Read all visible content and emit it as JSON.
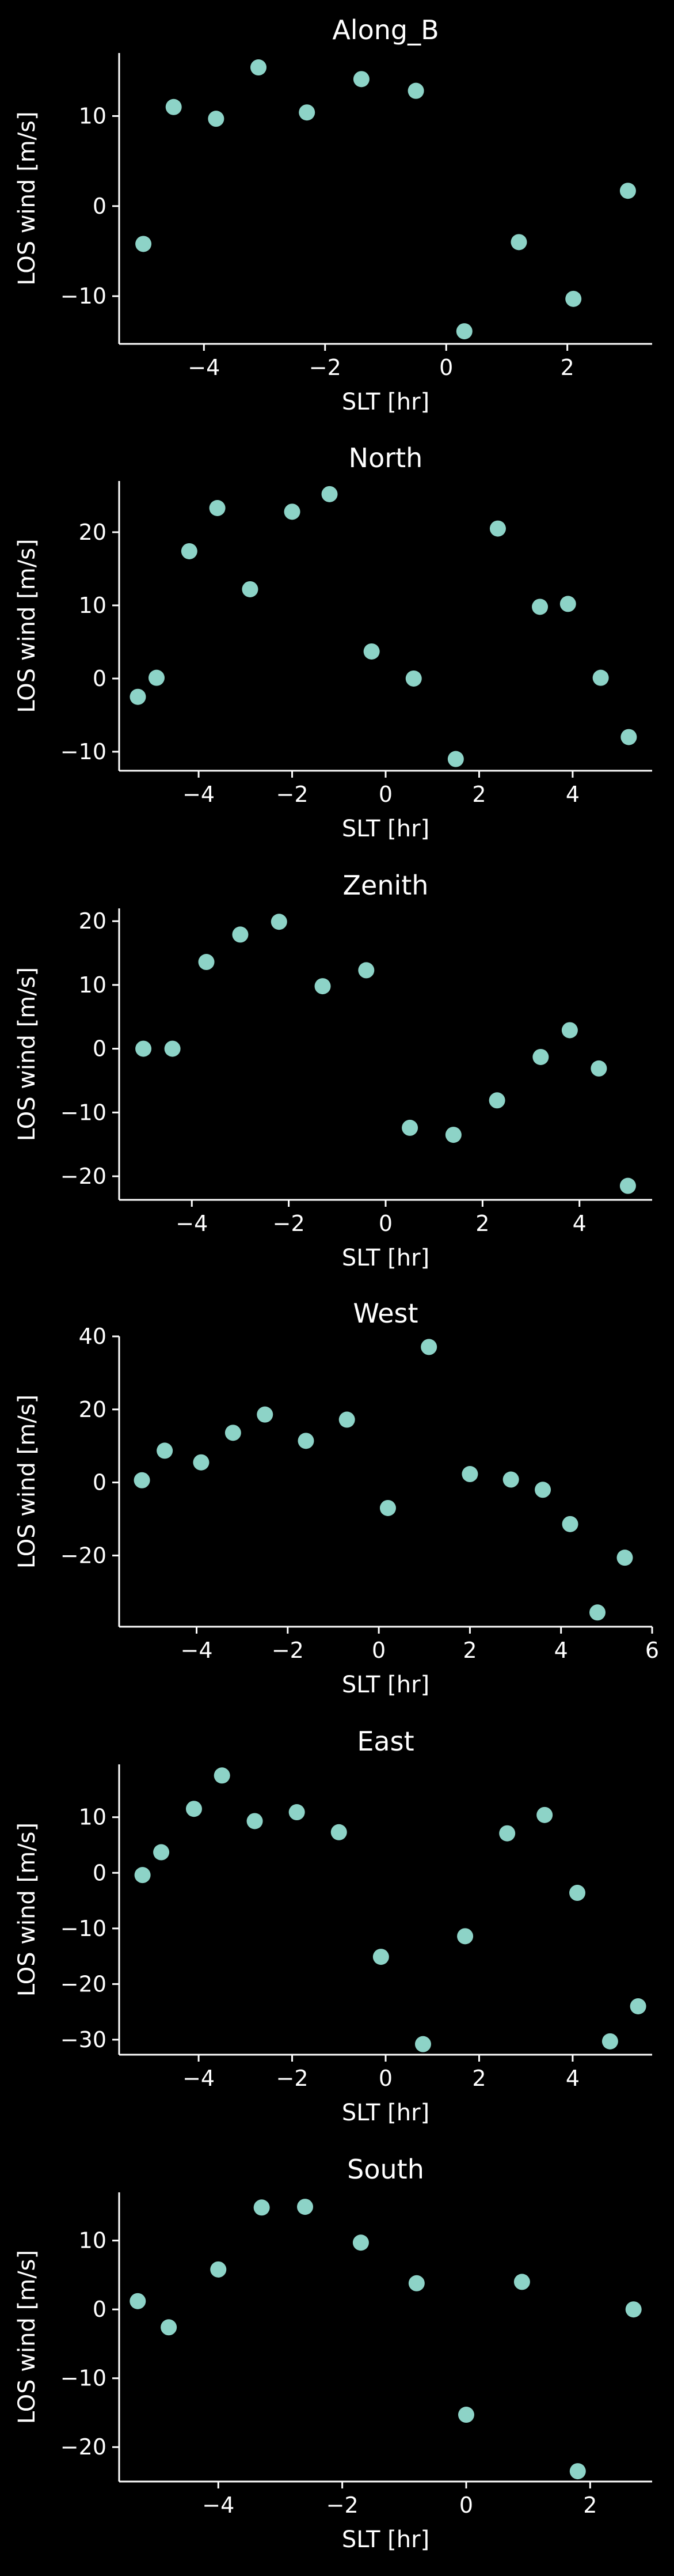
{
  "chart_data": [
    {
      "type": "scatter",
      "title": "Along_B",
      "xlabel": "SLT [hr]",
      "ylabel": "LOS wind [m/s]",
      "xlim": [
        -5.4,
        3.4
      ],
      "ylim": [
        -15.3,
        17.0
      ],
      "xticks": [
        -4,
        -2,
        0,
        2
      ],
      "yticks": [
        -10,
        0,
        10
      ],
      "marker_color": "#8dd3c7",
      "points": [
        {
          "x": -5.0,
          "y": -4.2
        },
        {
          "x": -4.5,
          "y": 11.0
        },
        {
          "x": -3.8,
          "y": 9.7
        },
        {
          "x": -3.1,
          "y": 15.4
        },
        {
          "x": -2.3,
          "y": 10.4
        },
        {
          "x": -1.4,
          "y": 14.1
        },
        {
          "x": -0.5,
          "y": 12.8
        },
        {
          "x": 0.3,
          "y": -13.9
        },
        {
          "x": 1.2,
          "y": -4.0
        },
        {
          "x": 2.1,
          "y": -10.3
        },
        {
          "x": 3.0,
          "y": 1.7
        }
      ]
    },
    {
      "type": "scatter",
      "title": "North",
      "xlabel": "SLT [hr]",
      "ylabel": "LOS wind [m/s]",
      "xlim": [
        -5.7,
        5.7
      ],
      "ylim": [
        -12.6,
        27.0
      ],
      "xticks": [
        -4,
        -2,
        0,
        2,
        4
      ],
      "yticks": [
        -10,
        0,
        10,
        20
      ],
      "marker_color": "#8dd3c7",
      "points": [
        {
          "x": -5.3,
          "y": -2.5
        },
        {
          "x": -4.9,
          "y": 0.1
        },
        {
          "x": -4.2,
          "y": 17.4
        },
        {
          "x": -3.6,
          "y": 23.3
        },
        {
          "x": -2.9,
          "y": 12.2
        },
        {
          "x": -2.0,
          "y": 22.8
        },
        {
          "x": -1.2,
          "y": 25.2
        },
        {
          "x": -0.3,
          "y": 3.7
        },
        {
          "x": 0.6,
          "y": 0.0
        },
        {
          "x": 1.5,
          "y": -11.0
        },
        {
          "x": 2.4,
          "y": 20.5
        },
        {
          "x": 3.3,
          "y": 9.8
        },
        {
          "x": 3.9,
          "y": 10.2
        },
        {
          "x": 4.6,
          "y": 0.1
        },
        {
          "x": 5.2,
          "y": -8.0
        }
      ]
    },
    {
      "type": "scatter",
      "title": "Zenith",
      "xlabel": "SLT [hr]",
      "ylabel": "LOS wind [m/s]",
      "xlim": [
        -5.5,
        5.5
      ],
      "ylim": [
        -23.7,
        22.0
      ],
      "xticks": [
        -4,
        -2,
        0,
        2,
        4
      ],
      "yticks": [
        -20,
        -10,
        0,
        10,
        20
      ],
      "marker_color": "#8dd3c7",
      "points": [
        {
          "x": -5.0,
          "y": 0.0
        },
        {
          "x": -4.4,
          "y": 0.0
        },
        {
          "x": -3.7,
          "y": 13.6
        },
        {
          "x": -3.0,
          "y": 17.9
        },
        {
          "x": -2.2,
          "y": 19.9
        },
        {
          "x": -1.3,
          "y": 9.8
        },
        {
          "x": -0.4,
          "y": 12.3
        },
        {
          "x": 0.5,
          "y": -12.4
        },
        {
          "x": 1.4,
          "y": -13.5
        },
        {
          "x": 2.3,
          "y": -8.1
        },
        {
          "x": 3.2,
          "y": -1.3
        },
        {
          "x": 3.8,
          "y": 2.9
        },
        {
          "x": 4.4,
          "y": -3.1
        },
        {
          "x": 5.0,
          "y": -21.5
        }
      ]
    },
    {
      "type": "scatter",
      "title": "West",
      "xlabel": "SLT [hr]",
      "ylabel": "LOS wind [m/s]",
      "xlim": [
        -5.7,
        6.0
      ],
      "ylim": [
        -39.5,
        40.0
      ],
      "xticks": [
        -4,
        -2,
        0,
        2,
        4,
        6
      ],
      "yticks": [
        -20,
        0,
        20,
        40
      ],
      "marker_color": "#8dd3c7",
      "points": [
        {
          "x": -5.2,
          "y": 0.6
        },
        {
          "x": -4.7,
          "y": 8.7
        },
        {
          "x": -3.9,
          "y": 5.5
        },
        {
          "x": -3.2,
          "y": 13.6
        },
        {
          "x": -2.5,
          "y": 18.6
        },
        {
          "x": -1.6,
          "y": 11.4
        },
        {
          "x": -0.7,
          "y": 17.2
        },
        {
          "x": 0.2,
          "y": -7.0
        },
        {
          "x": 1.1,
          "y": 37.1
        },
        {
          "x": 2.0,
          "y": 2.3
        },
        {
          "x": 2.9,
          "y": 0.8
        },
        {
          "x": 3.6,
          "y": -2.0
        },
        {
          "x": 4.2,
          "y": -11.4
        },
        {
          "x": 4.8,
          "y": -35.6
        },
        {
          "x": 5.4,
          "y": -20.6
        }
      ]
    },
    {
      "type": "scatter",
      "title": "East",
      "xlabel": "SLT [hr]",
      "ylabel": "LOS wind [m/s]",
      "xlim": [
        -5.7,
        5.7
      ],
      "ylim": [
        -32.7,
        19.5
      ],
      "xticks": [
        -4,
        -2,
        0,
        2,
        4
      ],
      "yticks": [
        -30,
        -20,
        -10,
        0,
        10
      ],
      "marker_color": "#8dd3c7",
      "points": [
        {
          "x": -5.2,
          "y": -0.4
        },
        {
          "x": -4.8,
          "y": 3.7
        },
        {
          "x": -4.1,
          "y": 11.5
        },
        {
          "x": -3.5,
          "y": 17.5
        },
        {
          "x": -2.8,
          "y": 9.3
        },
        {
          "x": -1.9,
          "y": 10.9
        },
        {
          "x": -1.0,
          "y": 7.3
        },
        {
          "x": -0.1,
          "y": -15.1
        },
        {
          "x": 0.8,
          "y": -30.8
        },
        {
          "x": 1.7,
          "y": -11.4
        },
        {
          "x": 2.6,
          "y": 7.1
        },
        {
          "x": 3.4,
          "y": 10.4
        },
        {
          "x": 4.1,
          "y": -3.6
        },
        {
          "x": 4.8,
          "y": -30.3
        },
        {
          "x": 5.4,
          "y": -24.0
        }
      ]
    },
    {
      "type": "scatter",
      "title": "South",
      "xlabel": "SLT [hr]",
      "ylabel": "LOS wind [m/s]",
      "xlim": [
        -5.6,
        3.0
      ],
      "ylim": [
        -25.0,
        17.0
      ],
      "xticks": [
        -4,
        -2,
        0,
        2
      ],
      "yticks": [
        -20,
        -10,
        0,
        10
      ],
      "marker_color": "#8dd3c7",
      "points": [
        {
          "x": -5.3,
          "y": 1.2
        },
        {
          "x": -4.8,
          "y": -2.6
        },
        {
          "x": -4.0,
          "y": 5.8
        },
        {
          "x": -3.3,
          "y": 14.8
        },
        {
          "x": -2.6,
          "y": 14.9
        },
        {
          "x": -1.7,
          "y": 9.7
        },
        {
          "x": -0.8,
          "y": 3.8
        },
        {
          "x": 0.0,
          "y": -15.3
        },
        {
          "x": 0.9,
          "y": 4.0
        },
        {
          "x": 1.8,
          "y": -23.5
        },
        {
          "x": 2.7,
          "y": 0.0
        }
      ]
    }
  ]
}
